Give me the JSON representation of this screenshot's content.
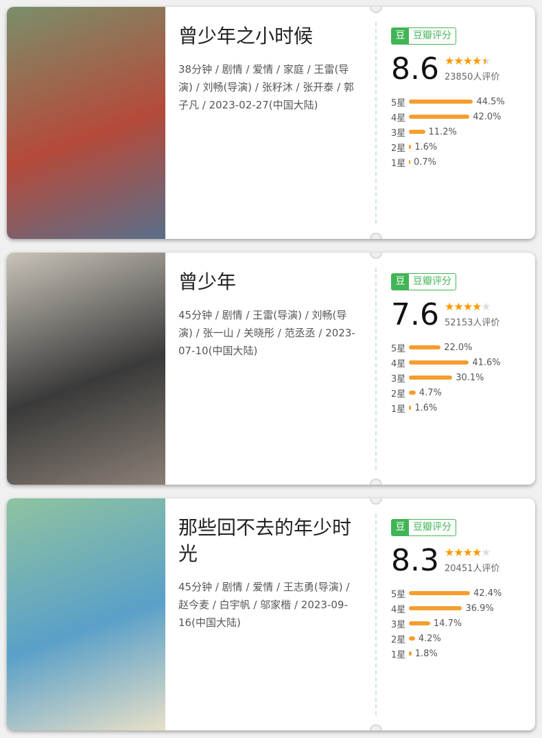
{
  "badge": {
    "icon": "豆",
    "label": "豆瓣评分"
  },
  "colors": {
    "accent": "#41b555",
    "bar": "#f59e2e",
    "star": "#ff9900"
  },
  "items": [
    {
      "title": "曾少年之小时候",
      "meta": "38分钟 / 剧情 / 爱情 / 家庭 / 王雷(导演) / 刘畅(导演) / 张籽沐 / 张开泰 / 郭子凡 / 2023-02-27(中国大陆)",
      "score": "8.6",
      "stars": 4.5,
      "count": "23850人评价",
      "dist": [
        {
          "label": "5星",
          "pct": "44.5%"
        },
        {
          "label": "4星",
          "pct": "42.0%"
        },
        {
          "label": "3星",
          "pct": "11.2%"
        },
        {
          "label": "2星",
          "pct": "1.6%"
        },
        {
          "label": "1星",
          "pct": "0.7%"
        }
      ],
      "poster_colors": [
        "#7a8f6a",
        "#b54a3a",
        "#5a6f8a"
      ]
    },
    {
      "title": "曾少年",
      "meta": "45分钟 / 剧情 / 王雷(导演) / 刘畅(导演) / 张一山 / 关晓彤 / 范丞丞 / 2023-07-10(中国大陆)",
      "score": "7.6",
      "stars": 4,
      "count": "52153人评价",
      "dist": [
        {
          "label": "5星",
          "pct": "22.0%"
        },
        {
          "label": "4星",
          "pct": "41.6%"
        },
        {
          "label": "3星",
          "pct": "30.1%"
        },
        {
          "label": "2星",
          "pct": "4.7%"
        },
        {
          "label": "1星",
          "pct": "1.6%"
        }
      ],
      "poster_colors": [
        "#c9c3b8",
        "#3a3a3a",
        "#8a7f75"
      ]
    },
    {
      "title": "那些回不去的年少时光",
      "meta": "45分钟 / 剧情 / 爱情 / 王志勇(导演) / 赵今麦 / 白宇帆 / 邬家楷 / 2023-09-16(中国大陆)",
      "score": "8.3",
      "stars": 4,
      "count": "20451人评价",
      "dist": [
        {
          "label": "5星",
          "pct": "42.4%"
        },
        {
          "label": "4星",
          "pct": "36.9%"
        },
        {
          "label": "3星",
          "pct": "14.7%"
        },
        {
          "label": "2星",
          "pct": "4.2%"
        },
        {
          "label": "1星",
          "pct": "1.8%"
        }
      ],
      "poster_colors": [
        "#8fc3a0",
        "#5aa0c8",
        "#e8e0c8"
      ]
    }
  ]
}
